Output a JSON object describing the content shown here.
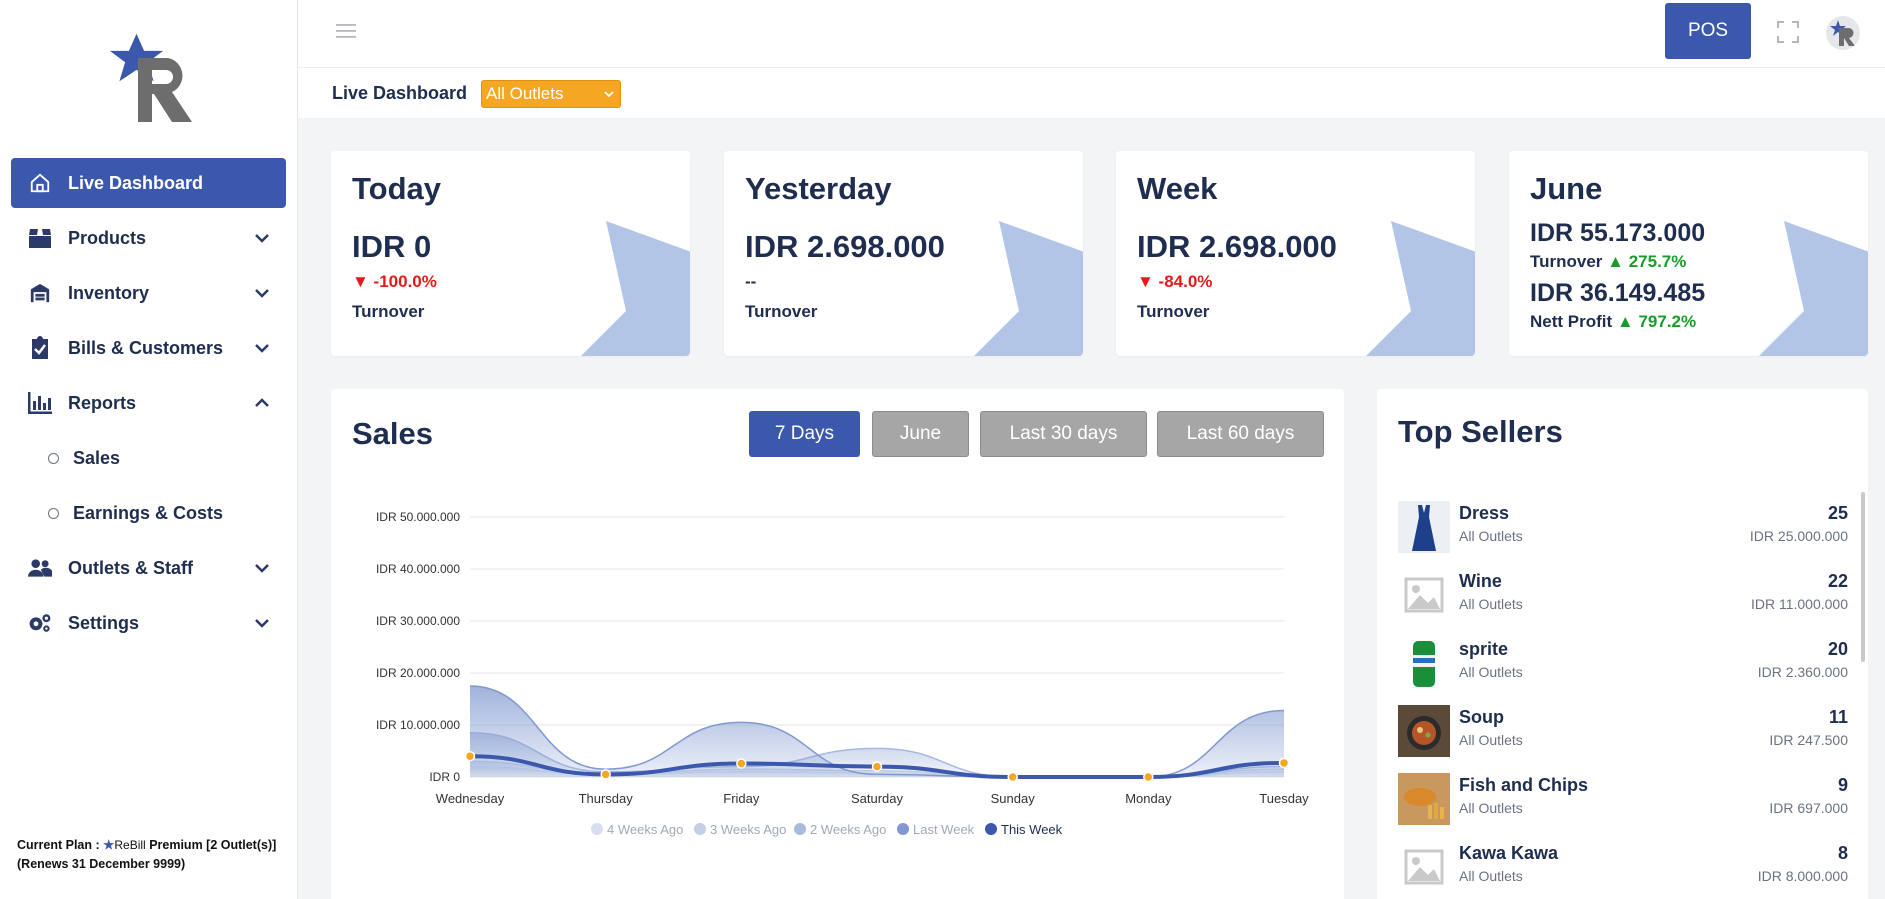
{
  "sidebar": {
    "items": [
      {
        "label": "Live Dashboard",
        "icon": "home-icon"
      },
      {
        "label": "Products",
        "icon": "box-icon"
      },
      {
        "label": "Inventory",
        "icon": "warehouse-icon"
      },
      {
        "label": "Bills & Customers",
        "icon": "clipboard-check-icon"
      },
      {
        "label": "Reports",
        "icon": "bar-chart-icon"
      },
      {
        "label": "Outlets & Staff",
        "icon": "users-icon"
      },
      {
        "label": "Settings",
        "icon": "gears-icon"
      }
    ],
    "report_subitems": [
      "Sales",
      "Earnings & Costs"
    ],
    "plan": {
      "prefix": "Current Plan :",
      "brand": "ReBill",
      "tier": "Premium [2 Outlet(s)]",
      "renews": "(Renews 31 December 9999)"
    }
  },
  "topbar": {
    "pos_label": "POS"
  },
  "subbar": {
    "title": "Live Dashboard",
    "outlet": "All Outlets"
  },
  "cards": {
    "today": {
      "title": "Today",
      "value": "IDR 0",
      "change": "▼ -100.0%",
      "label": "Turnover"
    },
    "yesterday": {
      "title": "Yesterday",
      "value": "IDR 2.698.000",
      "change": "--",
      "label": "Turnover"
    },
    "week": {
      "title": "Week",
      "value": "IDR 2.698.000",
      "change": "▼ -84.0%",
      "label": "Turnover"
    },
    "month": {
      "title": "June",
      "turnover_value": "IDR 55.173.000",
      "turnover_label": "Turnover",
      "turnover_change": "▲ 275.7%",
      "profit_value": "IDR 36.149.485",
      "profit_label": "Nett Profit",
      "profit_change": "▲ 797.2%"
    }
  },
  "sales": {
    "title": "Sales",
    "ranges": [
      "7 Days",
      "June",
      "Last 30 days",
      "Last 60 days"
    ],
    "active_range": 0
  },
  "chart_data": {
    "type": "area",
    "categories": [
      "Wednesday",
      "Thursday",
      "Friday",
      "Saturday",
      "Sunday",
      "Monday",
      "Tuesday"
    ],
    "y_ticks": [
      "IDR 0",
      "IDR 10.000.000",
      "IDR 20.000.000",
      "IDR 30.000.000",
      "IDR 40.000.000",
      "IDR 50.000.000"
    ],
    "ylim": [
      0,
      50000000
    ],
    "grid": true,
    "legend_position": "bottom",
    "series": [
      {
        "name": "4 Weeks Ago",
        "color": "#d6deef",
        "values": [
          2000000,
          500000,
          1000000,
          800000,
          0,
          0,
          1000000
        ]
      },
      {
        "name": "3 Weeks Ago",
        "color": "#c3cfe7",
        "values": [
          3000000,
          600000,
          1500000,
          1200000,
          0,
          0,
          1500000
        ]
      },
      {
        "name": "2 Weeks Ago",
        "color": "#a9bade",
        "values": [
          8500000,
          1000000,
          2000000,
          5500000,
          0,
          0,
          2000000
        ]
      },
      {
        "name": "Last Week",
        "color": "#8199d0",
        "values": [
          17500000,
          1500000,
          10500000,
          500000,
          0,
          0,
          12800000
        ]
      },
      {
        "name": "This Week",
        "color": "#3b58ad",
        "values": [
          4000000,
          500000,
          2600000,
          2000000,
          0,
          0,
          2700000
        ]
      }
    ]
  },
  "top_sellers": {
    "title": "Top Sellers",
    "items": [
      {
        "name": "Dress",
        "outlet": "All Outlets",
        "qty": "25",
        "amount": "IDR 25.000.000",
        "thumb": "dress"
      },
      {
        "name": "Wine",
        "outlet": "All Outlets",
        "qty": "22",
        "amount": "IDR 11.000.000",
        "thumb": "placeholder"
      },
      {
        "name": "sprite",
        "outlet": "All Outlets",
        "qty": "20",
        "amount": "IDR 2.360.000",
        "thumb": "can"
      },
      {
        "name": "Soup",
        "outlet": "All Outlets",
        "qty": "11",
        "amount": "IDR 247.500",
        "thumb": "soup"
      },
      {
        "name": "Fish and Chips",
        "outlet": "All Outlets",
        "qty": "9",
        "amount": "IDR 697.000",
        "thumb": "fish"
      },
      {
        "name": "Kawa Kawa",
        "outlet": "All Outlets",
        "qty": "8",
        "amount": "IDR 8.000.000",
        "thumb": "placeholder"
      }
    ]
  }
}
